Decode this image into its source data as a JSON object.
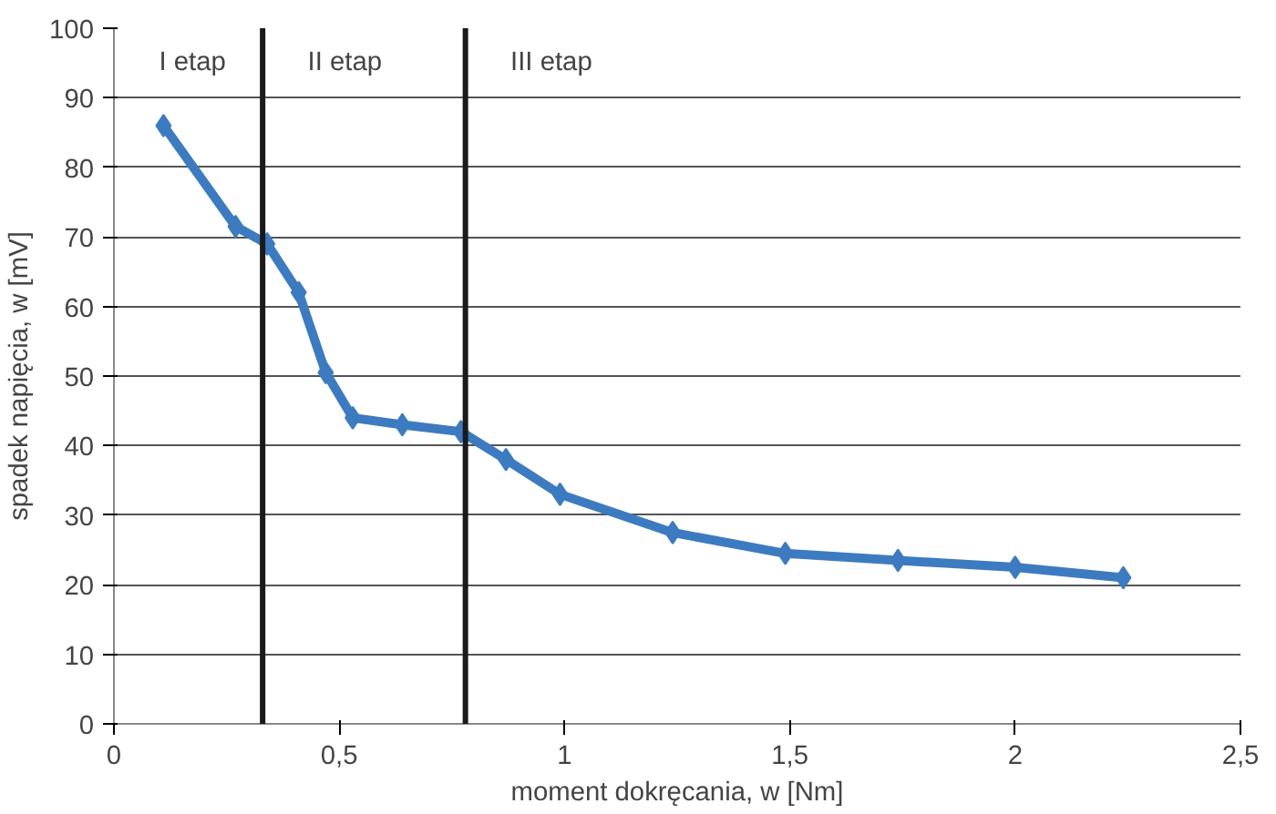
{
  "chart_data": {
    "type": "line",
    "xlabel": "moment dokręcania, w [Nm]",
    "ylabel": "spadek napięcia, w [mV]",
    "x": [
      0.11,
      0.27,
      0.34,
      0.41,
      0.47,
      0.53,
      0.64,
      0.77,
      0.87,
      0.99,
      1.24,
      1.49,
      1.74,
      2.0,
      2.24
    ],
    "series": [
      {
        "color": "#3d7bc0",
        "values": [
          86,
          71.5,
          69,
          62,
          50.5,
          44,
          43,
          42,
          38,
          33,
          27.5,
          24.5,
          23.5,
          22.5,
          21
        ]
      }
    ],
    "xlim": [
      0,
      2.5
    ],
    "ylim": [
      0,
      100
    ],
    "xticks": [
      0,
      {
        "value": 0.5,
        "label": "0,5"
      },
      1,
      {
        "value": 1.5,
        "label": "1,5"
      },
      2,
      {
        "value": 2.5,
        "label": "2,5"
      }
    ],
    "yticks": [
      0,
      10,
      20,
      30,
      40,
      50,
      60,
      70,
      80,
      90,
      100
    ],
    "grid": "y",
    "marker": "diamond",
    "line_style": "solid",
    "ref_lines": [
      {
        "axis": "x",
        "value": 0.33,
        "color": "#1a1a1a"
      },
      {
        "axis": "x",
        "value": 0.78,
        "color": "#1a1a1a"
      }
    ],
    "annotations": [
      "I etap",
      "II etap",
      "III etap"
    ]
  }
}
